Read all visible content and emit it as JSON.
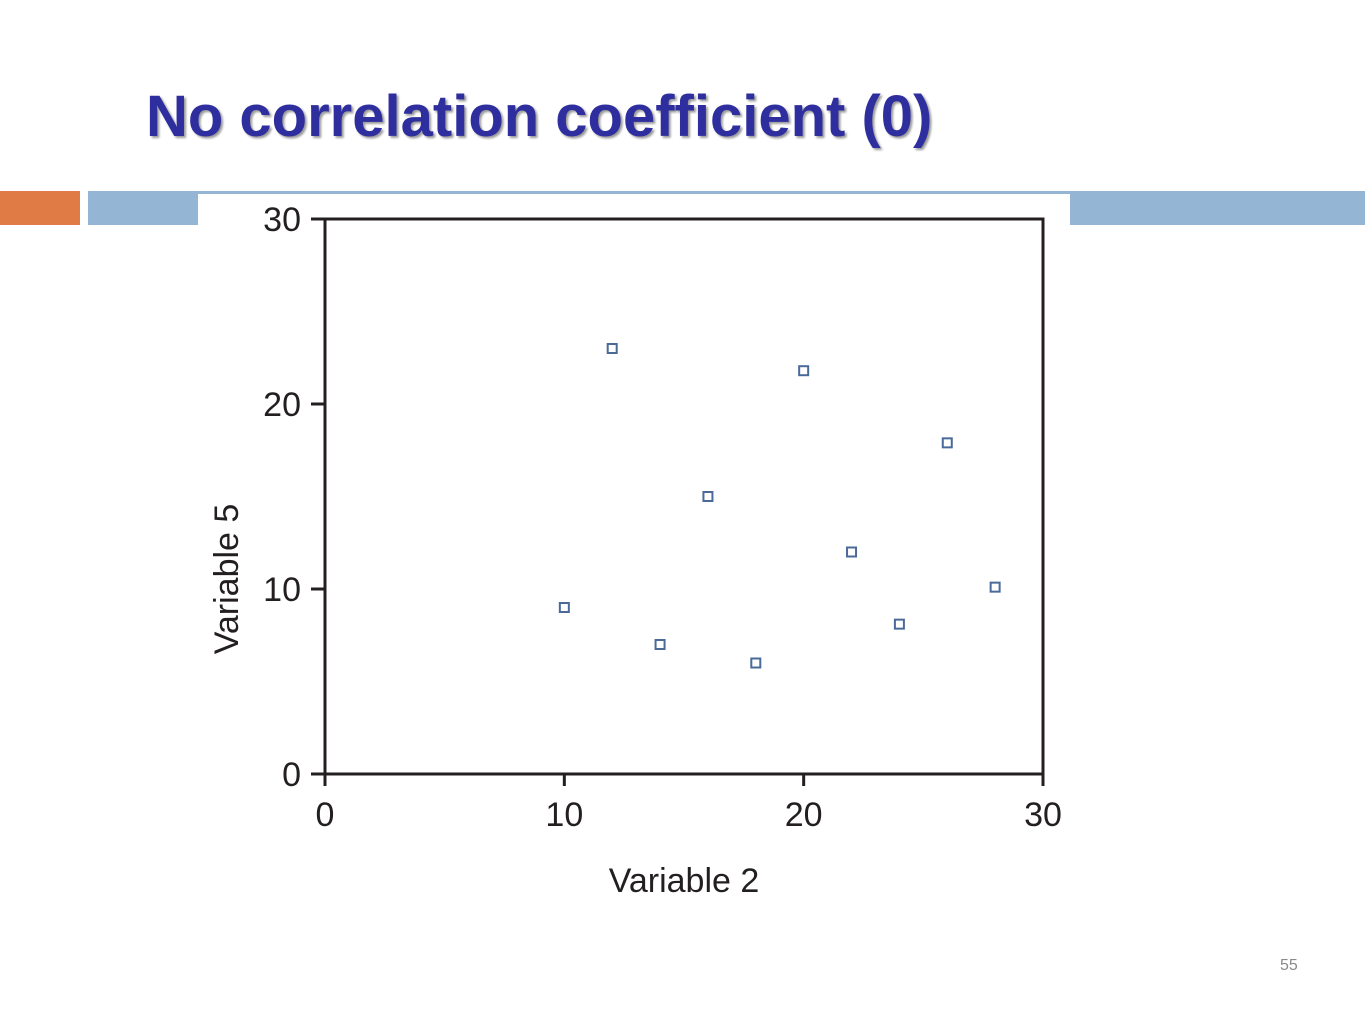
{
  "slide": {
    "title": "No correlation coefficient (0)",
    "page_number": "55"
  },
  "colors": {
    "title": "#2e2e9e",
    "accent_orange": "#e07b45",
    "accent_blue": "#94b5d3",
    "marker": "#4a6a9a",
    "axis": "#231f20"
  },
  "chart_data": {
    "type": "scatter",
    "title": "",
    "xlabel": "Variable 2",
    "ylabel": "Variable 5",
    "xlim": [
      0,
      30
    ],
    "ylim": [
      0,
      30
    ],
    "xticks": [
      0,
      10,
      20,
      30
    ],
    "yticks": [
      0,
      10,
      20,
      30
    ],
    "grid": false,
    "marker": "hollow-square",
    "points": [
      {
        "x": 10,
        "y": 9
      },
      {
        "x": 12,
        "y": 23
      },
      {
        "x": 14,
        "y": 7
      },
      {
        "x": 16,
        "y": 15
      },
      {
        "x": 18,
        "y": 6
      },
      {
        "x": 20,
        "y": 21.8
      },
      {
        "x": 22,
        "y": 12
      },
      {
        "x": 24,
        "y": 8.1
      },
      {
        "x": 26,
        "y": 17.9
      },
      {
        "x": 28,
        "y": 10.1
      }
    ]
  }
}
